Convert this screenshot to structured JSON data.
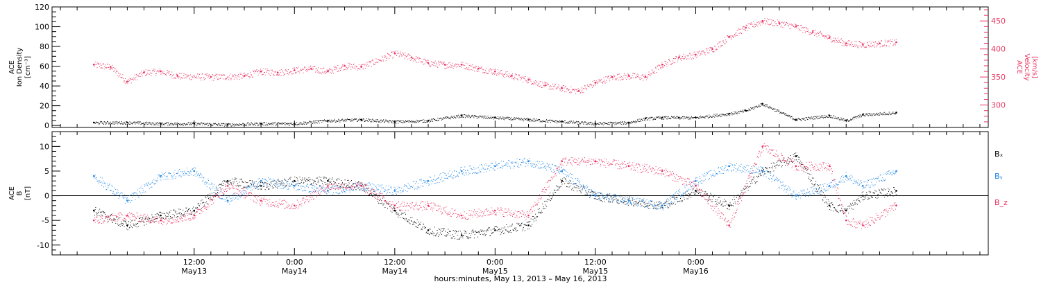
{
  "colors": {
    "black": "#000000",
    "pink": "#e8315f",
    "blue": "#1f86e6"
  },
  "chart_data": [
    {
      "type": "scatter",
      "panel": "top",
      "ylabel_left": [
        "ACE",
        "Ion Density",
        "[cm⁻³]"
      ],
      "ylabel_right": [
        "ACE",
        "Velocity",
        "[km/s]"
      ],
      "ylim_left": [
        -2,
        120
      ],
      "yticks_left": [
        "0",
        "20",
        "40",
        "60",
        "80",
        "100",
        "120"
      ],
      "ylim_right": [
        260,
        475
      ],
      "yticks_right": [
        "300",
        "350",
        "400",
        "450"
      ],
      "series": [
        {
          "axis": "left",
          "color": "#000000",
          "x": [
            0,
            4,
            8,
            12,
            16,
            20,
            24,
            28,
            32,
            36,
            40,
            44,
            48,
            52,
            56,
            60,
            64,
            66,
            68,
            70,
            72,
            76,
            78,
            80,
            84,
            88,
            90,
            92,
            96
          ],
          "y": [
            3,
            3,
            2,
            2,
            1,
            2,
            2,
            5,
            6,
            4,
            5,
            10,
            8,
            6,
            4,
            2,
            3,
            7,
            8,
            8,
            8,
            12,
            15,
            22,
            6,
            10,
            5,
            11,
            13
          ]
        },
        {
          "axis": "right",
          "color": "#e8315f",
          "x": [
            0,
            2,
            4,
            6,
            8,
            10,
            14,
            18,
            20,
            22,
            24,
            26,
            28,
            30,
            32,
            36,
            38,
            40,
            42,
            44,
            46,
            48,
            50,
            52,
            54,
            56,
            58,
            60,
            62,
            64,
            66,
            68,
            70,
            72,
            74,
            76,
            78,
            80,
            82,
            84,
            86,
            88,
            90,
            92,
            94,
            96
          ],
          "y": [
            372,
            368,
            342,
            358,
            360,
            352,
            350,
            352,
            360,
            358,
            362,
            365,
            360,
            370,
            368,
            392,
            385,
            375,
            372,
            372,
            365,
            360,
            352,
            345,
            335,
            330,
            325,
            340,
            350,
            352,
            350,
            372,
            385,
            390,
            400,
            422,
            438,
            450,
            446,
            440,
            430,
            420,
            410,
            408,
            410,
            412
          ]
        }
      ]
    },
    {
      "type": "scatter",
      "panel": "bottom",
      "ylabel_left": [
        "ACE",
        "B",
        "[nT]"
      ],
      "ylim": [
        -12,
        13
      ],
      "yticks": [
        "-10",
        "-5",
        "0",
        "5",
        "10"
      ],
      "legend": [
        "Bₓ",
        "Bᵧ",
        "B_z"
      ],
      "legend_placement": "right",
      "series": [
        {
          "name": "Bₓ",
          "color": "#000000",
          "x": [
            0,
            4,
            8,
            12,
            16,
            20,
            24,
            28,
            32,
            36,
            40,
            44,
            48,
            52,
            56,
            60,
            64,
            68,
            72,
            76,
            80,
            84,
            88,
            90,
            92,
            96
          ],
          "y": [
            -3,
            -6,
            -4,
            -3,
            3,
            2,
            3,
            3,
            2,
            -3,
            -7,
            -8,
            -7,
            -6,
            3,
            0,
            -1,
            -2,
            1,
            -2,
            5,
            8,
            -2,
            -3,
            0,
            1
          ]
        },
        {
          "name": "Bᵧ",
          "color": "#1f86e6",
          "x": [
            0,
            4,
            8,
            12,
            16,
            20,
            24,
            28,
            32,
            36,
            40,
            44,
            48,
            52,
            56,
            60,
            64,
            68,
            72,
            76,
            80,
            84,
            88,
            90,
            92,
            96
          ],
          "y": [
            4,
            -1,
            4,
            5,
            -1,
            3,
            2,
            1,
            2,
            1,
            3,
            5,
            6,
            7,
            5,
            0,
            -1,
            -2,
            3,
            6,
            5,
            0,
            2,
            4,
            2,
            5
          ]
        },
        {
          "name": "B_z",
          "color": "#e8315f",
          "x": [
            0,
            4,
            8,
            12,
            16,
            20,
            24,
            28,
            32,
            36,
            40,
            44,
            48,
            52,
            56,
            60,
            64,
            68,
            72,
            76,
            80,
            84,
            88,
            90,
            92,
            96
          ],
          "y": [
            -5,
            -4,
            -5,
            -4,
            2,
            -1,
            -2,
            2,
            2,
            -2,
            -2,
            -4,
            -3,
            -4,
            7,
            7,
            6,
            5,
            2,
            -6,
            10,
            6,
            6,
            -5,
            -6,
            -2
          ]
        }
      ]
    }
  ],
  "x_axis": {
    "range_hours": [
      -5,
      107
    ],
    "ticks": [
      {
        "hour": 12,
        "time": "12:00",
        "day": "May13"
      },
      {
        "hour": 24,
        "time": "0:00",
        "day": "May14"
      },
      {
        "hour": 36,
        "time": "12:00",
        "day": "May14"
      },
      {
        "hour": 48,
        "time": "0:00",
        "day": "May15"
      },
      {
        "hour": 60,
        "time": "12:00",
        "day": "May15"
      },
      {
        "hour": 72,
        "time": "0:00",
        "day": "May16"
      }
    ],
    "xlabel": "hours:minutes, May 13, 2013 – May 16, 2013"
  }
}
